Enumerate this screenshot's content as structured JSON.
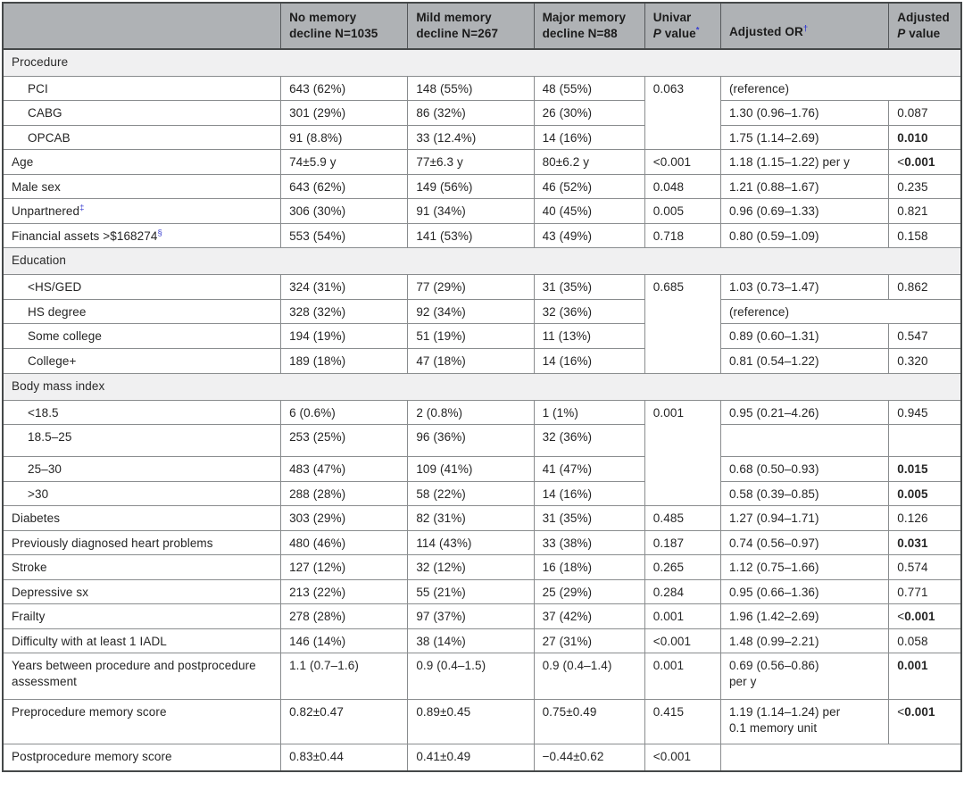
{
  "meta": {
    "accent_blue": "#3a3fd0",
    "header_bg": "#afb2b5",
    "section_bg": "#f0f0f1",
    "table_kind": "statistical comparison table"
  },
  "header": {
    "corner": "",
    "no_memory": {
      "l1": "No memory",
      "l2": "decline N=1035"
    },
    "mild_memory": {
      "l1": "Mild memory",
      "l2": "decline N=267"
    },
    "major_memory": {
      "l1": "Major memory",
      "l2": "decline N=88"
    },
    "univar": {
      "l1": "Univar",
      "p": "P",
      "value": " value",
      "sup": "*"
    },
    "adjusted_or": {
      "label": "Adjusted OR",
      "sup": "†"
    },
    "adjusted_p": {
      "l1": "Adjusted",
      "p": "P",
      "value": " value"
    }
  },
  "sections": {
    "procedure": "Procedure",
    "education": "Education",
    "bmi": "Body mass index"
  },
  "rows": {
    "pci": {
      "label": "PCI",
      "no": "643 (62%)",
      "mild": "148 (55%)",
      "major": "48 (55%)",
      "univar": "0.063",
      "or": "(reference)"
    },
    "cabg": {
      "label": "CABG",
      "no": "301 (29%)",
      "mild": "86 (32%)",
      "major": "26 (30%)",
      "or": "1.30 (0.96–1.76)",
      "adjp": "0.087"
    },
    "opcab": {
      "label": "OPCAB",
      "no": "91 (8.8%)",
      "mild": "33 (12.4%)",
      "major": "14 (16%)",
      "or": "1.75 (1.14–2.69)",
      "adjp": "0.010"
    },
    "age": {
      "label": "Age",
      "no": "74±5.9 y",
      "mild": "77±6.3 y",
      "major": "80±6.2 y",
      "univar": "<0.001",
      "or": "1.18 (1.15–1.22) per y",
      "adjp_pre": "<",
      "adjp": "0.001"
    },
    "male_sex": {
      "label": "Male sex",
      "no": "643 (62%)",
      "mild": "149 (56%)",
      "major": "46 (52%)",
      "univar": "0.048",
      "or": "1.21 (0.88–1.67)",
      "adjp": "0.235"
    },
    "unpartnered": {
      "label": "Unpartnered",
      "sup": "‡",
      "no": "306 (30%)",
      "mild": "91 (34%)",
      "major": "40 (45%)",
      "univar": "0.005",
      "or": "0.96 (0.69–1.33)",
      "adjp": "0.821"
    },
    "financial_assets": {
      "label": "Financial assets >$168274",
      "sup": "§",
      "no": "553 (54%)",
      "mild": "141 (53%)",
      "major": "43 (49%)",
      "univar": "0.718",
      "or": "0.80 (0.59–1.09)",
      "adjp": "0.158"
    },
    "hs_ged": {
      "label": "<HS/GED",
      "no": "324 (31%)",
      "mild": "77 (29%)",
      "major": "31 (35%)",
      "univar": "0.685",
      "or": "1.03 (0.73–1.47)",
      "adjp": "0.862"
    },
    "hs_degree": {
      "label": "HS degree",
      "no": "328 (32%)",
      "mild": "92 (34%)",
      "major": "32 (36%)",
      "or": "(reference)"
    },
    "some_college": {
      "label": "Some college",
      "no": "194 (19%)",
      "mild": "51 (19%)",
      "major": "11 (13%)",
      "or": "0.89 (0.60–1.31)",
      "adjp": "0.547"
    },
    "college_plus": {
      "label": "College+",
      "no": "189 (18%)",
      "mild": "47 (18%)",
      "major": "14 (16%)",
      "or": "0.81 (0.54–1.22)",
      "adjp": "0.320"
    },
    "bmi_lt_18_5": {
      "label": "<18.5",
      "no": "6 (0.6%)",
      "mild": "2 (0.8%)",
      "major": "1 (1%)",
      "univar": "0.001",
      "or": "0.95 (0.21–4.26)",
      "adjp": "0.945"
    },
    "bmi_18_5_25": {
      "label": "18.5–25",
      "no": "253 (25%)",
      "mild": "96 (36%)",
      "major": "32 (36%)",
      "or": "",
      "adjp": ""
    },
    "bmi_25_30": {
      "label": "25–30",
      "no": "483 (47%)",
      "mild": "109 (41%)",
      "major": "41 (47%)",
      "or": "0.68 (0.50–0.93)",
      "adjp": "0.015"
    },
    "bmi_gt_30": {
      "label": ">30",
      "no": "288 (28%)",
      "mild": "58 (22%)",
      "major": "14 (16%)",
      "or": "0.58 (0.39–0.85)",
      "adjp": "0.005"
    },
    "diabetes": {
      "label": "Diabetes",
      "no": "303 (29%)",
      "mild": "82 (31%)",
      "major": "31 (35%)",
      "univar": "0.485",
      "or": "1.27 (0.94–1.71)",
      "adjp": "0.126"
    },
    "heart_problems": {
      "label": "Previously diagnosed heart problems",
      "no": "480 (46%)",
      "mild": "114 (43%)",
      "major": "33 (38%)",
      "univar": "0.187",
      "or": "0.74 (0.56–0.97)",
      "adjp": "0.031"
    },
    "stroke": {
      "label": "Stroke",
      "no": "127 (12%)",
      "mild": "32 (12%)",
      "major": "16 (18%)",
      "univar": "0.265",
      "or": "1.12 (0.75–1.66)",
      "adjp": "0.574"
    },
    "depressive_sx": {
      "label": "Depressive sx",
      "no": "213 (22%)",
      "mild": "55 (21%)",
      "major": "25 (29%)",
      "univar": "0.284",
      "or": "0.95 (0.66–1.36)",
      "adjp": "0.771"
    },
    "frailty": {
      "label": "Frailty",
      "no": "278 (28%)",
      "mild": "97 (37%)",
      "major": "37 (42%)",
      "univar": "0.001",
      "or": "1.96 (1.42–2.69)",
      "adjp_pre": "<",
      "adjp": "0.001"
    },
    "iadl": {
      "label": "Difficulty with at least 1 IADL",
      "no": "146 (14%)",
      "mild": "38 (14%)",
      "major": "27 (31%)",
      "univar": "<0.001",
      "or": "1.48 (0.99–2.21)",
      "adjp": "0.058"
    },
    "years_between": {
      "label": "Years between procedure and postprocedure assessment",
      "no": "1.1 (0.7–1.6)",
      "mild": "0.9 (0.4–1.5)",
      "major": "0.9 (0.4–1.4)",
      "univar": "0.001",
      "or": "0.69 (0.56–0.86)",
      "or2": "per y",
      "adjp": "0.001"
    },
    "pre_memory": {
      "label": "Preprocedure memory score",
      "no": "0.82±0.47",
      "mild": "0.89±0.45",
      "major": "0.75±0.49",
      "univar": "0.415",
      "or": "1.19 (1.14–1.24) per",
      "or2": "0.1 memory unit",
      "adjp_pre": "<",
      "adjp": "0.001"
    },
    "post_memory": {
      "label": "Postprocedure memory score",
      "no": "0.83±0.44",
      "mild": "0.41±0.49",
      "major": "−0.44±0.62",
      "univar": "<0.001",
      "or": ""
    }
  }
}
